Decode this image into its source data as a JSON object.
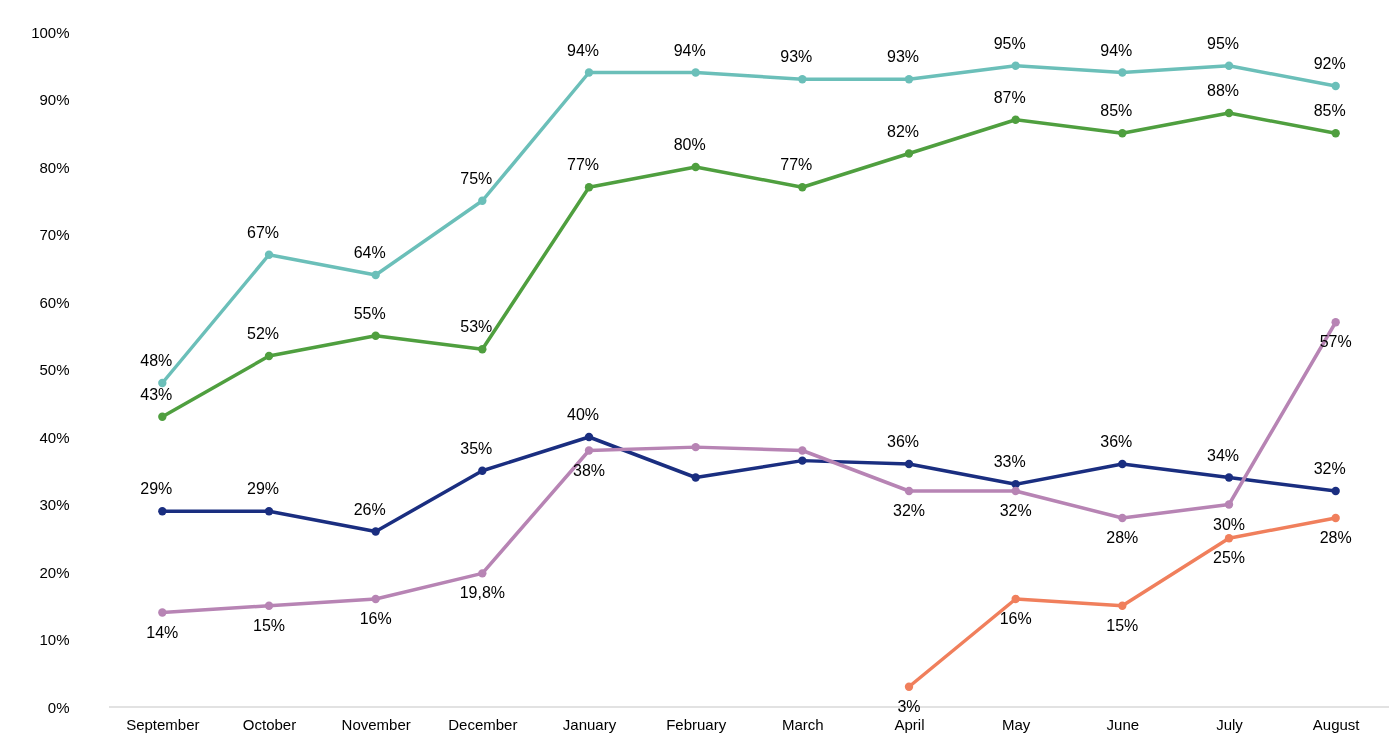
{
  "chart_data": {
    "type": "line",
    "categories": [
      "September",
      "October",
      "November",
      "December",
      "January",
      "February",
      "March",
      "April",
      "May",
      "June",
      "July",
      "August"
    ],
    "series": [
      {
        "color": "#6bbfb9",
        "values": [
          48,
          67,
          64,
          75,
          94,
          94,
          93,
          93,
          95,
          94,
          95,
          92
        ],
        "value_labels": [
          "48%",
          "67%",
          "64%",
          "75%",
          "94%",
          "94%",
          "93%",
          "93%",
          "95%",
          "94%",
          "95%",
          "92%"
        ]
      },
      {
        "color": "#4f9f3f",
        "values": [
          43,
          52,
          55,
          53,
          77,
          80,
          77,
          82,
          87,
          85,
          88,
          85
        ],
        "value_labels": [
          "43%",
          "52%",
          "55%",
          "53%",
          "77%",
          "80%",
          "77%",
          "82%",
          "87%",
          "85%",
          "88%",
          "85%"
        ]
      },
      {
        "color": "#1a2e80",
        "values": [
          29,
          29,
          26,
          35,
          40,
          34,
          36.5,
          36,
          33,
          36,
          34,
          32
        ],
        "value_labels": [
          "29%",
          "29%",
          "26%",
          "35%",
          "40%",
          null,
          null,
          "36%",
          "33%",
          "36%",
          "34%",
          "32%"
        ]
      },
      {
        "color": "#b784b4",
        "values": [
          14,
          15,
          16,
          19.8,
          38,
          38.5,
          38,
          32,
          32,
          28,
          30,
          57
        ],
        "value_labels": [
          "14%",
          "15%",
          "16%",
          "19,8%",
          "38%",
          null,
          null,
          "32%",
          "32%",
          "28%",
          "30%",
          "57%"
        ]
      },
      {
        "color": "#f07f5c",
        "values": [
          null,
          null,
          null,
          null,
          null,
          null,
          null,
          3,
          16,
          15,
          25,
          28
        ],
        "value_labels": [
          null,
          null,
          null,
          null,
          null,
          null,
          null,
          "3%",
          "16%",
          "15%",
          "25%",
          "28%"
        ]
      }
    ],
    "ylim": [
      0,
      100
    ],
    "yticks": [
      {
        "value": 0,
        "label": "0%"
      },
      {
        "value": 10,
        "label": "10%"
      },
      {
        "value": 20,
        "label": "20%"
      },
      {
        "value": 30,
        "label": "30%"
      },
      {
        "value": 40,
        "label": "40%"
      },
      {
        "value": 50,
        "label": "50%"
      },
      {
        "value": 60,
        "label": "60%"
      },
      {
        "value": 70,
        "label": "70%"
      },
      {
        "value": 80,
        "label": "80%"
      },
      {
        "value": 90,
        "label": "90%"
      },
      {
        "value": 100,
        "label": "100%"
      }
    ],
    "marker": "circle",
    "line_style": "solid",
    "grid": false,
    "legend": false
  }
}
